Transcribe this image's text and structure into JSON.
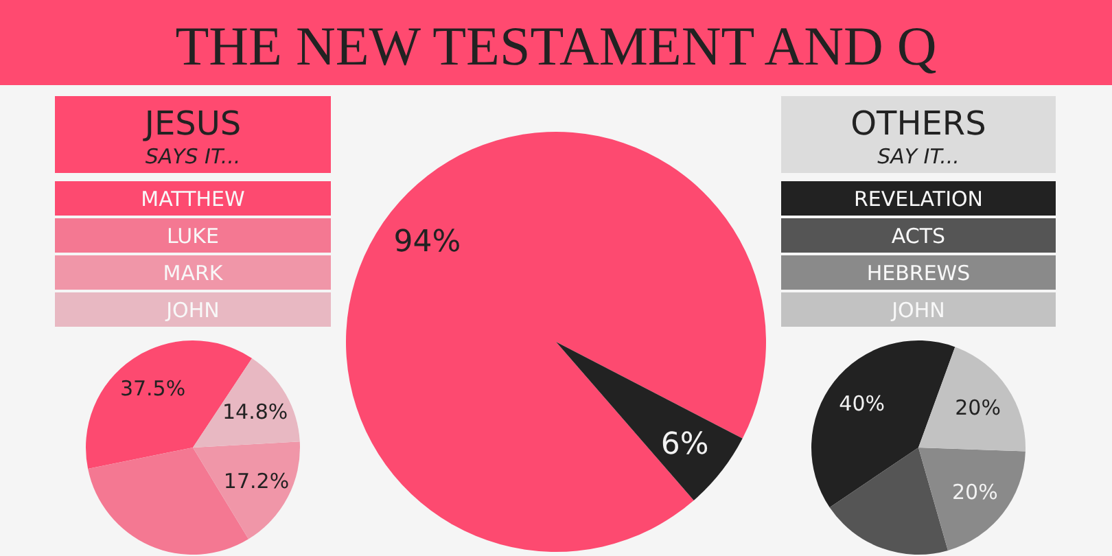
{
  "chart_data": [
    {
      "type": "pie",
      "title": "JESUS",
      "subtitle": "SAYS IT...",
      "categories": [
        "MATTHEW",
        "LUKE",
        "MARK",
        "JOHN"
      ],
      "values": [
        37.5,
        30.5,
        17.2,
        14.8
      ],
      "colors": [
        "#fd4a70",
        "#f47892",
        "#f096a8",
        "#e8b8c2"
      ],
      "value_labels": [
        "37.5%",
        null,
        "17.2%",
        "14.8%"
      ],
      "legend": "top"
    },
    {
      "type": "pie",
      "title": "THE NEW TESTAMENT AND Q",
      "categories": [
        null,
        null
      ],
      "values": [
        94,
        6
      ],
      "colors": [
        "#fd4a70",
        "#222222"
      ],
      "value_labels": [
        "94%",
        "6%"
      ]
    },
    {
      "type": "pie",
      "title": "OTHERS",
      "subtitle": "SAY IT...",
      "categories": [
        "REVELATION",
        "ACTS",
        "HEBREWS",
        "JOHN"
      ],
      "values": [
        40,
        20,
        20,
        20
      ],
      "colors": [
        "#222222",
        "#555555",
        "#8a8a8a",
        "#c2c2c2"
      ],
      "value_labels": [
        "40%",
        null,
        "20%",
        "20%"
      ],
      "legend": "top"
    }
  ]
}
